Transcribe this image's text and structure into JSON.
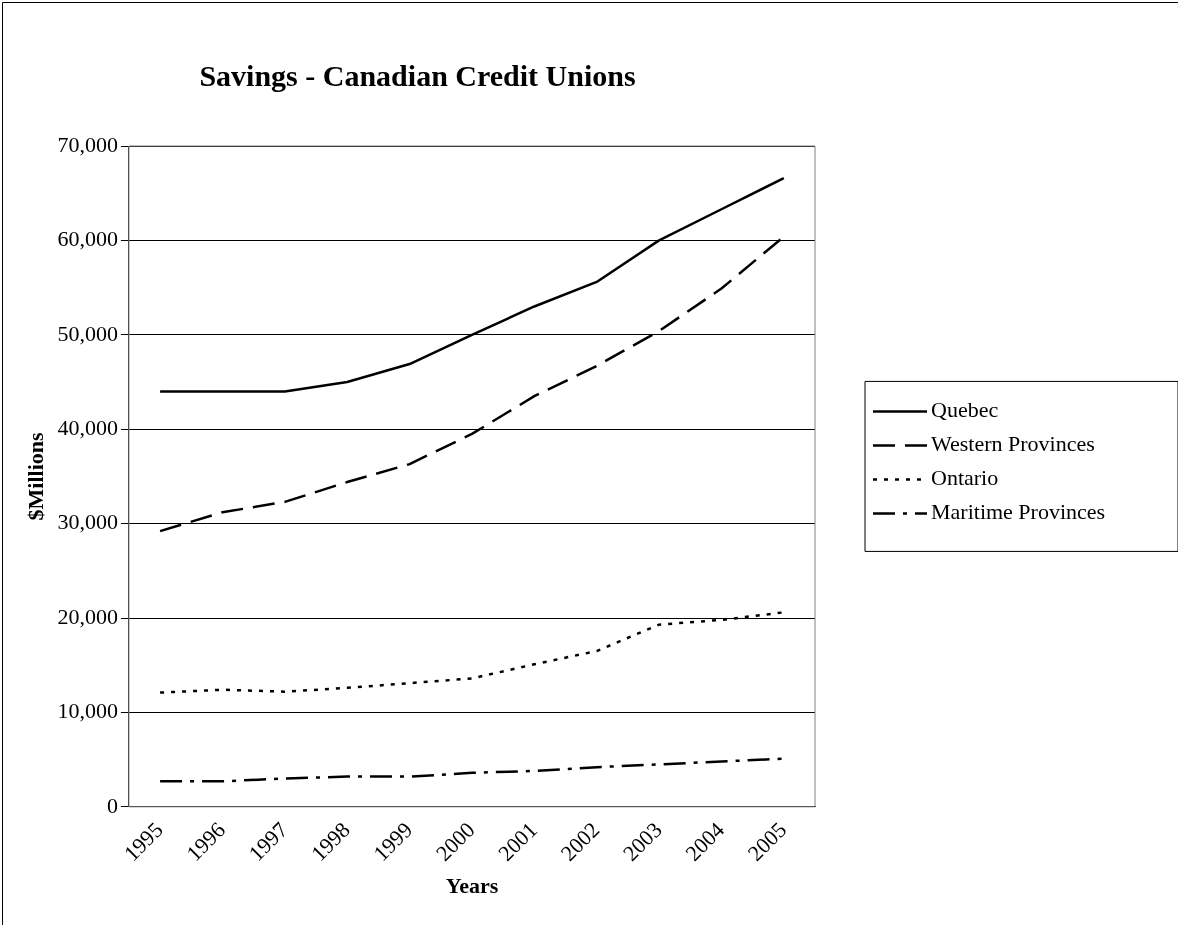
{
  "chart_data": {
    "type": "line",
    "title": "Savings - Canadian Credit Unions",
    "xlabel": "Years",
    "ylabel": "$Millions",
    "categories": [
      "1995",
      "1996",
      "1997",
      "1998",
      "1999",
      "2000",
      "2001",
      "2002",
      "2003",
      "2004",
      "2005"
    ],
    "series": [
      {
        "name": "Quebec",
        "color": "#000000",
        "line_style": "solid",
        "values": [
          44000,
          44000,
          44000,
          45000,
          46900,
          50000,
          53000,
          55600,
          60000,
          63300,
          66600
        ]
      },
      {
        "name": "Western Provinces",
        "color": "#000000",
        "line_style": "dashed",
        "values": [
          29200,
          31200,
          32300,
          34400,
          36300,
          39500,
          43500,
          46700,
          50400,
          54900,
          60400
        ]
      },
      {
        "name": "Ontario",
        "color": "#000000",
        "line_style": "dotted",
        "values": [
          12100,
          12400,
          12200,
          12600,
          13100,
          13600,
          15100,
          16500,
          19300,
          19800,
          20600
        ]
      },
      {
        "name": "Maritime Provinces",
        "color": "#000000",
        "line_style": "dashdot",
        "values": [
          2700,
          2700,
          3000,
          3200,
          3200,
          3600,
          3800,
          4200,
          4500,
          4800,
          5100
        ]
      }
    ],
    "ylim": [
      0,
      70000
    ],
    "yticks": [
      {
        "value": 0,
        "label": "0"
      },
      {
        "value": 10000,
        "label": "10,000"
      },
      {
        "value": 20000,
        "label": "20,000"
      },
      {
        "value": 30000,
        "label": "30,000"
      },
      {
        "value": 40000,
        "label": "40,000"
      },
      {
        "value": 50000,
        "label": "50,000"
      },
      {
        "value": 60000,
        "label": "60,000"
      },
      {
        "value": 70000,
        "label": "70,000"
      }
    ],
    "grid": "y",
    "legend": "right",
    "marker": "none"
  }
}
